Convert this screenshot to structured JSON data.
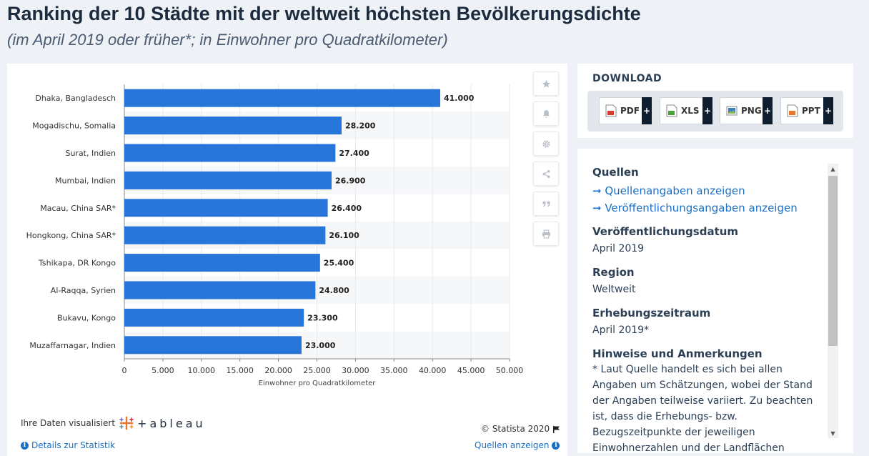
{
  "header": {
    "title": "Ranking der 10 Städte mit der weltweit höchsten Bevölkerungsdichte",
    "subtitle": "(im April 2019 oder früher*; in Einwohner pro Quadratkilometer)"
  },
  "chart_data": {
    "type": "bar",
    "orientation": "horizontal",
    "categories": [
      "Dhaka, Bangladesch",
      "Mogadischu, Somalia",
      "Surat, Indien",
      "Mumbai, Indien",
      "Macau, China SAR*",
      "Hongkong, China SAR*",
      "Tshikapa, DR Kongo",
      "Al-Raqqa, Syrien",
      "Bukavu, Kongo",
      "Muzaffarnagar, Indien"
    ],
    "values": [
      41000,
      28200,
      27400,
      26900,
      26400,
      26100,
      25400,
      24800,
      23300,
      23000
    ],
    "value_labels": [
      "41.000",
      "28.200",
      "27.400",
      "26.900",
      "26.400",
      "26.100",
      "25.400",
      "24.800",
      "23.300",
      "23.000"
    ],
    "xlabel": "Einwohner pro Quadratkilometer",
    "xlim": [
      0,
      50000
    ],
    "ticks": [
      0,
      5000,
      10000,
      15000,
      20000,
      25000,
      30000,
      35000,
      40000,
      45000,
      50000
    ],
    "tick_labels": [
      "0",
      "5.000",
      "10.000",
      "15.000",
      "20.000",
      "25.000",
      "30.000",
      "35.000",
      "40.000",
      "45.000",
      "50.000"
    ],
    "bar_color": "#2875d9"
  },
  "toolbar": {
    "icons": [
      "star-icon",
      "bell-icon",
      "gear-icon",
      "share-icon",
      "quote-icon",
      "print-icon"
    ]
  },
  "footer": {
    "tableau_prefix": "Ihre Daten visualisiert",
    "tableau_word": "+ableau",
    "copyright": "© Statista 2020",
    "details_link": "Details zur Statistik",
    "sources_link": "Quellen anzeigen"
  },
  "download": {
    "title": "DOWNLOAD",
    "buttons": [
      {
        "label": "PDF",
        "icon": "pdf-file-icon",
        "color": "#d63a2f"
      },
      {
        "label": "XLS",
        "icon": "xls-file-icon",
        "color": "#4aa33a"
      },
      {
        "label": "PNG",
        "icon": "png-file-icon",
        "color": "#3a7ec2"
      },
      {
        "label": "PPT",
        "icon": "ppt-file-icon",
        "color": "#e8772e"
      }
    ],
    "plus": "+"
  },
  "info": {
    "sources_heading": "Quellen",
    "sources_link": "➞ Quellenangaben anzeigen",
    "publication_link": "➞ Veröffentlichungsangaben anzeigen",
    "pubdate_heading": "Veröffentlichungsdatum",
    "pubdate_value": "April 2019",
    "region_heading": "Region",
    "region_value": "Weltweit",
    "period_heading": "Erhebungszeitraum",
    "period_value": "April 2019*",
    "notes_heading": "Hinweise und Anmerkungen",
    "notes_value": "* Laut Quelle handelt es sich bei allen Angaben um Schätzungen, wobei der Stand der Angaben teilweise variiert. Zu beachten ist, dass die Erhebungs- bzw. Bezugszeitpunkte der jeweiligen Einwohnerzahlen und der Landflächen"
  }
}
